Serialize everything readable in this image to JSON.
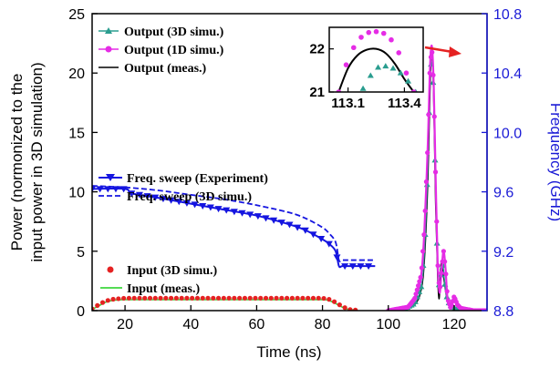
{
  "chart_data": [
    {
      "type": "line",
      "xlabel": "Time (ns)",
      "ylabel_line1": "Power (normonized to the",
      "ylabel_line2": "input power in 3D simulation)",
      "y2label": "Frequency (GHz)",
      "xlim": [
        10,
        130
      ],
      "ylim": [
        0,
        25
      ],
      "y2lim": [
        8.8,
        10.8
      ],
      "xticks": [
        "20",
        "40",
        "60",
        "80",
        "100",
        "120"
      ],
      "yticks": [
        "0",
        "5",
        "10",
        "15",
        "20",
        "25"
      ],
      "y2ticks": [
        "8.8",
        "9.2",
        "9.6",
        "10.0",
        "10.4",
        "10.8"
      ],
      "colors": {
        "axis": "#000000",
        "y2axis": "#1a1ad6",
        "output3d": "#2a9d8f",
        "output1d": "#e52ce5",
        "outputMeas": "#000000",
        "sweepExp": "#1515e0",
        "sweep3d": "#1515e0",
        "input3d": "#e52222",
        "inputMeas": "#3dd63d"
      },
      "legend_top": [
        "Output (3D simu.)",
        "Output (1D simu.)",
        "Output (meas.)"
      ],
      "legend_mid": [
        "Freq. sweep (Experiment)",
        "Freq. sweep (3D simu.)"
      ],
      "legend_bottom": [
        "Input (3D simu.)",
        "Input (meas.)"
      ],
      "series": [
        {
          "name": "Output (1D simu.)",
          "axis": "left",
          "x": [
            100,
            106,
            108,
            110,
            111,
            112,
            112.6,
            113.2,
            113.8,
            114.4,
            115,
            115.6,
            116.2,
            116.8,
            117.4,
            118,
            119,
            120,
            121,
            122,
            124,
            126,
            128,
            130
          ],
          "y": [
            0,
            0.3,
            1,
            3,
            7,
            14,
            20,
            22.3,
            19,
            11,
            4,
            1.5,
            3.5,
            5,
            3.5,
            1,
            0.2,
            1.2,
            0.5,
            0.2,
            0.1,
            0,
            0,
            0
          ]
        },
        {
          "name": "Output (3D simu.)",
          "axis": "left",
          "x": [
            104,
            108,
            110,
            111,
            112,
            112.6,
            113.2,
            113.8,
            114.4,
            115,
            115.6,
            116,
            116.6,
            117.2,
            118,
            119,
            120,
            122
          ],
          "y": [
            0,
            0.6,
            2,
            5,
            12,
            19,
            21.6,
            18,
            10,
            3.5,
            1.5,
            3,
            3.8,
            2.2,
            0.8,
            0.4,
            0.2,
            0
          ]
        },
        {
          "name": "Output (meas.)",
          "axis": "left",
          "x": [
            104,
            108,
            110,
            111,
            112,
            112.6,
            113.2,
            113.8,
            114.4,
            115,
            115.4,
            115.8,
            116.2,
            117,
            118,
            119,
            120,
            122
          ],
          "y": [
            0,
            0.5,
            1.8,
            4.5,
            11,
            18,
            22,
            18,
            9,
            3,
            1,
            2.8,
            4,
            2.5,
            0.8,
            0.3,
            0.1,
            0
          ]
        },
        {
          "name": "Freq. sweep (Experiment)",
          "axis": "right",
          "x": [
            10,
            20,
            22,
            30,
            40,
            50,
            60,
            70,
            75,
            80,
            82,
            84,
            85,
            86,
            88,
            96
          ],
          "y": [
            9.62,
            9.62,
            9.59,
            9.56,
            9.52,
            9.48,
            9.44,
            9.38,
            9.34,
            9.28,
            9.25,
            9.2,
            9.1,
            9.1,
            9.1,
            9.1
          ]
        },
        {
          "name": "Freq. sweep (3D simu.)",
          "axis": "right",
          "x": [
            10,
            20,
            30,
            40,
            50,
            60,
            70,
            75,
            80,
            82,
            84,
            85,
            86,
            88,
            96
          ],
          "y": [
            9.64,
            9.63,
            9.61,
            9.58,
            9.55,
            9.51,
            9.46,
            9.42,
            9.36,
            9.32,
            9.26,
            9.14,
            9.14,
            9.14,
            9.14
          ]
        },
        {
          "name": "Input (3D simu.)",
          "axis": "left",
          "x": [
            10,
            12,
            14,
            16,
            18,
            20,
            25,
            30,
            35,
            40,
            45,
            50,
            55,
            60,
            65,
            70,
            75,
            80,
            82,
            84,
            86,
            88,
            90
          ],
          "y": [
            0.15,
            0.5,
            0.8,
            0.95,
            1.0,
            1.05,
            1.05,
            1.05,
            1.05,
            1.05,
            1.05,
            1.05,
            1.05,
            1.05,
            1.05,
            1.05,
            1.05,
            1.05,
            0.95,
            0.7,
            0.35,
            0.1,
            0.05
          ]
        },
        {
          "name": "Input (meas.)",
          "axis": "left",
          "x": [
            10,
            12,
            14,
            16,
            18,
            20,
            30,
            40,
            50,
            60,
            70,
            80,
            82,
            84,
            86,
            88,
            90
          ],
          "y": [
            0.1,
            0.4,
            0.7,
            0.85,
            0.9,
            0.92,
            0.92,
            0.92,
            0.92,
            0.92,
            0.92,
            0.92,
            0.85,
            0.6,
            0.3,
            0.1,
            0.05
          ]
        }
      ]
    },
    {
      "type": "line",
      "xlim": [
        113.0,
        113.5
      ],
      "ylim": [
        21,
        22.5
      ],
      "xticks": [
        "113.1",
        "113.4"
      ],
      "yticks": [
        "21",
        "22"
      ],
      "series": [
        {
          "name": "Output (1D simu.)",
          "x": [
            113.05,
            113.09,
            113.13,
            113.17,
            113.21,
            113.25,
            113.29,
            113.33,
            113.37,
            113.41,
            113.45
          ],
          "y": [
            21.0,
            21.63,
            22.03,
            22.27,
            22.38,
            22.4,
            22.36,
            22.21,
            21.91,
            21.44,
            21.0
          ]
        },
        {
          "name": "Output (3D simu.)",
          "x": [
            113.18,
            113.22,
            113.26,
            113.3,
            113.34,
            113.38,
            113.42,
            113.46
          ],
          "y": [
            21.08,
            21.38,
            21.57,
            21.6,
            21.55,
            21.44,
            21.25,
            21.0
          ]
        },
        {
          "name": "Output (meas.)",
          "x": [
            113.05,
            113.1,
            113.15,
            113.2,
            113.25,
            113.3,
            113.35,
            113.4,
            113.45
          ],
          "y": [
            21.0,
            21.55,
            21.85,
            21.98,
            22.0,
            21.9,
            21.65,
            21.3,
            21.0
          ]
        }
      ]
    }
  ]
}
